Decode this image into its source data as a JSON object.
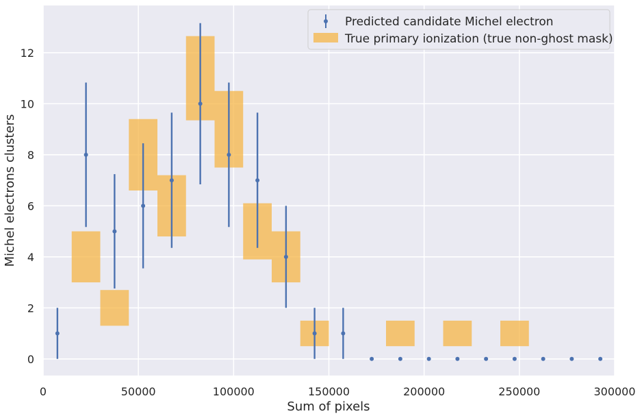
{
  "chart_data": {
    "type": "scatter",
    "title": "",
    "xlabel": "Sum of pixels",
    "ylabel": "Michel electrons clusters",
    "xlim": [
      0,
      300000
    ],
    "ylim": [
      -0.65,
      13.85
    ],
    "xticks": [
      0,
      50000,
      100000,
      150000,
      200000,
      250000,
      300000
    ],
    "yticks": [
      0,
      2,
      4,
      6,
      8,
      10,
      12
    ],
    "grid": true,
    "legend_position": "top-right",
    "colors": {
      "points": "#4c72b0",
      "bars": "#f5b547",
      "background": "#eaeaf2",
      "grid": "#ffffff"
    },
    "series": [
      {
        "name": "Predicted candidate Michel electron",
        "kind": "errorbar",
        "x": [
          7500,
          22500,
          37500,
          52500,
          67500,
          82500,
          97500,
          112500,
          127500,
          142500,
          157500,
          172500,
          187500,
          202500,
          217500,
          232500,
          247500,
          262500,
          277500,
          292500
        ],
        "y": [
          1,
          8,
          5,
          6,
          7,
          10,
          8,
          7,
          4,
          1,
          1,
          0,
          0,
          0,
          0,
          0,
          0,
          0,
          0,
          0
        ],
        "yerr": [
          1,
          2.83,
          2.24,
          2.45,
          2.65,
          3.16,
          2.83,
          2.65,
          2,
          1,
          1,
          0,
          0,
          0,
          0,
          0,
          0,
          0,
          0,
          0
        ]
      },
      {
        "name": "True primary ionization (true non-ghost mask)",
        "kind": "bar-band",
        "bins": [
          {
            "x0": 15000,
            "x1": 30000,
            "y": 4,
            "err": 1
          },
          {
            "x0": 30000,
            "x1": 45000,
            "y": 2,
            "err": 0.7
          },
          {
            "x0": 45000,
            "x1": 60000,
            "y": 8,
            "err": 1.4
          },
          {
            "x0": 60000,
            "x1": 75000,
            "y": 6,
            "err": 1.2
          },
          {
            "x0": 75000,
            "x1": 90000,
            "y": 11,
            "err": 1.65
          },
          {
            "x0": 90000,
            "x1": 105000,
            "y": 9,
            "err": 1.5
          },
          {
            "x0": 105000,
            "x1": 120000,
            "y": 5,
            "err": 1.1
          },
          {
            "x0": 120000,
            "x1": 135000,
            "y": 4,
            "err": 1
          },
          {
            "x0": 135000,
            "x1": 150000,
            "y": 1,
            "err": 0.5
          },
          {
            "x0": 180000,
            "x1": 195000,
            "y": 1,
            "err": 0.5
          },
          {
            "x0": 210000,
            "x1": 225000,
            "y": 1,
            "err": 0.5
          },
          {
            "x0": 240000,
            "x1": 255000,
            "y": 1,
            "err": 0.5
          }
        ]
      }
    ]
  }
}
